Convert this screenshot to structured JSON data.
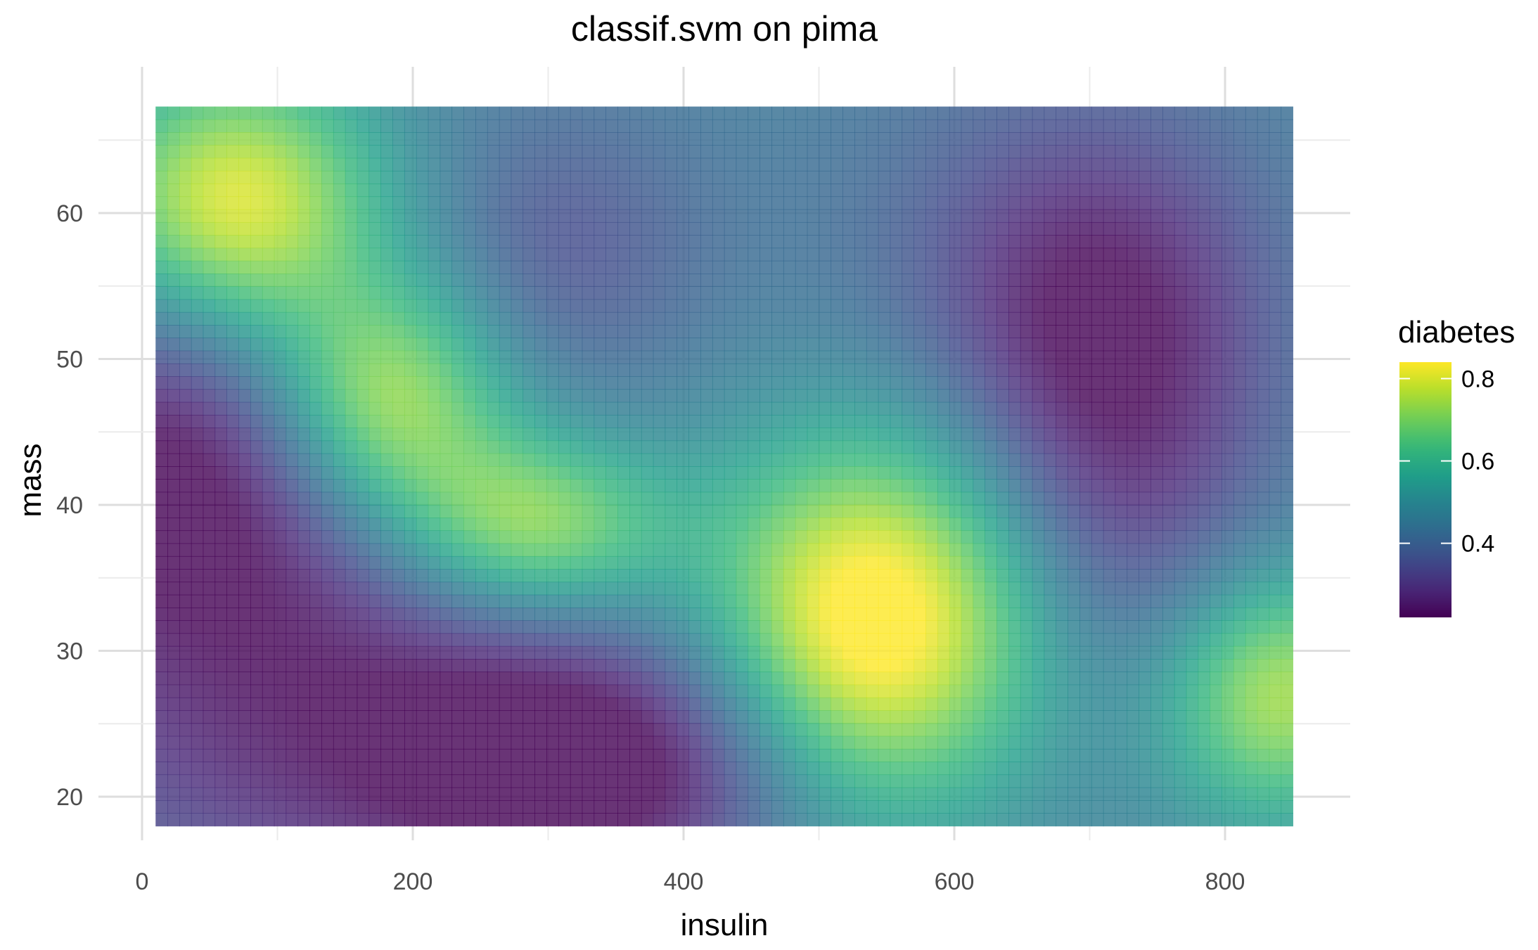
{
  "chart_data": {
    "type": "heatmap",
    "title": "classif.svm on pima",
    "xlabel": "insulin",
    "ylabel": "mass",
    "xlim": [
      10,
      850
    ],
    "ylim": [
      18,
      67.3
    ],
    "x_ticks": [
      0,
      200,
      400,
      600,
      800
    ],
    "x_tick_labels": [
      "0",
      "200",
      "400",
      "600",
      "800"
    ],
    "y_ticks": [
      20,
      30,
      40,
      50,
      60
    ],
    "y_tick_labels": [
      "20",
      "30",
      "40",
      "50",
      "60"
    ],
    "grid": true,
    "colorscale": "viridis",
    "fill_legend": {
      "title": "diabetes",
      "min": 0.22,
      "max": 0.84,
      "ticks": [
        0.4,
        0.6,
        0.8
      ],
      "tick_labels": [
        "0.4",
        "0.6",
        "0.8"
      ],
      "position": "right"
    },
    "surface": {
      "baseline": 0.45,
      "features": [
        {
          "insulin": 70,
          "mass": 60.5,
          "value": 0.38,
          "spread_insulin": 75,
          "spread_mass": 6.5
        },
        {
          "insulin": 180,
          "mass": 47,
          "value": 0.35,
          "spread_insulin": 65,
          "spread_mass": 6
        },
        {
          "insulin": 290,
          "mass": 38.5,
          "value": 0.3,
          "spread_insulin": 70,
          "spread_mass": 4.5
        },
        {
          "insulin": 540,
          "mass": 32,
          "value": 0.45,
          "spread_insulin": 85,
          "spread_mass": 9
        },
        {
          "insulin": 840,
          "mass": 27,
          "value": 0.3,
          "spread_insulin": 60,
          "spread_mass": 6
        },
        {
          "insulin": 30,
          "mass": 43,
          "value": -0.24,
          "spread_insulin": 110,
          "spread_mass": 9
        },
        {
          "insulin": 140,
          "mass": 25,
          "value": -0.18,
          "spread_insulin": 170,
          "spread_mass": 10
        },
        {
          "insulin": 340,
          "mass": 22,
          "value": -0.23,
          "spread_insulin": 110,
          "spread_mass": 6
        },
        {
          "insulin": 310,
          "mass": 57.5,
          "value": -0.1,
          "spread_insulin": 75,
          "spread_mass": 7
        },
        {
          "insulin": 710,
          "mass": 53,
          "value": -0.2,
          "spread_insulin": 85,
          "spread_mass": 9
        },
        {
          "insulin": 730,
          "mass": 39,
          "value": -0.11,
          "spread_insulin": 70,
          "spread_mass": 8
        },
        {
          "insulin": 640,
          "mass": 57,
          "value": -0.05,
          "spread_insulin": 120,
          "spread_mass": 10
        }
      ]
    }
  }
}
